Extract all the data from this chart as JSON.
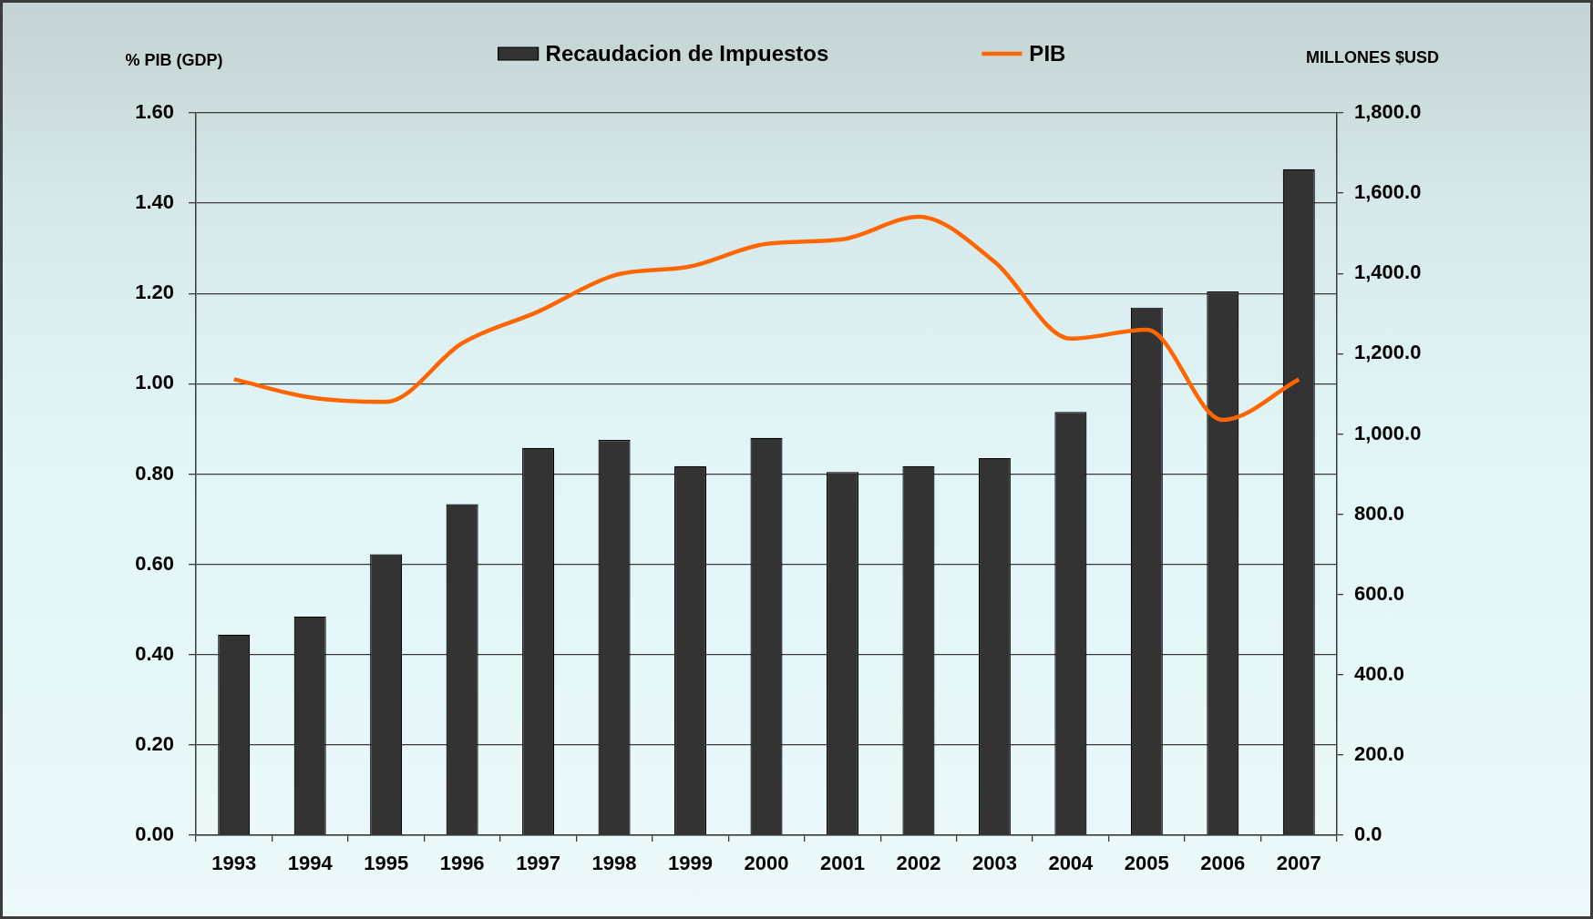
{
  "chart_data": {
    "type": "bar",
    "ylabel": "% PIB (GDP)",
    "y2label": "MILLONES $USD",
    "categories": [
      "1993",
      "1994",
      "1995",
      "1996",
      "1997",
      "1998",
      "1999",
      "2000",
      "2001",
      "2002",
      "2003",
      "2004",
      "2005",
      "2006",
      "2007"
    ],
    "series": [
      {
        "name": "Recaudacion de Impuestos",
        "axis": "y2",
        "color": "#333333",
        "values": [
          500,
          545,
          700,
          825,
          965,
          985,
          920,
          990,
          905,
          920,
          940,
          1055,
          1315,
          1355,
          1660
        ]
      },
      {
        "name": "PIB",
        "type": "line",
        "axis": "y",
        "color": "#ff6600",
        "values": [
          1.01,
          0.97,
          0.96,
          1.09,
          1.16,
          1.24,
          1.26,
          1.31,
          1.32,
          1.37,
          1.27,
          1.1,
          1.12,
          0.92,
          1.01
        ]
      }
    ],
    "ylim": [
      0,
      1.6
    ],
    "yticks": [
      {
        "value": 0,
        "label": "0.00"
      },
      {
        "value": 0.2,
        "label": "0.20"
      },
      {
        "value": 0.4,
        "label": "0.40"
      },
      {
        "value": 0.6,
        "label": "0.60"
      },
      {
        "value": 0.8,
        "label": "0.80"
      },
      {
        "value": 1,
        "label": "1.00"
      },
      {
        "value": 1.2,
        "label": "1.20"
      },
      {
        "value": 1.4,
        "label": "1.40"
      },
      {
        "value": 1.6,
        "label": "1.60"
      }
    ],
    "y2lim": [
      0,
      1800
    ],
    "y2ticks": [
      {
        "value": 0,
        "label": "0.0"
      },
      {
        "value": 200,
        "label": "200.0"
      },
      {
        "value": 400,
        "label": "400.0"
      },
      {
        "value": 600,
        "label": "600.0"
      },
      {
        "value": 800,
        "label": "800.0"
      },
      {
        "value": 1000,
        "label": "1,000.0"
      },
      {
        "value": 1200,
        "label": "1,200.0"
      },
      {
        "value": 1400,
        "label": "1,400.0"
      },
      {
        "value": 1600,
        "label": "1,600.0"
      },
      {
        "value": 1800,
        "label": "1,800.0"
      }
    ],
    "grid": "y",
    "legend": "top",
    "line_style": "solid"
  }
}
